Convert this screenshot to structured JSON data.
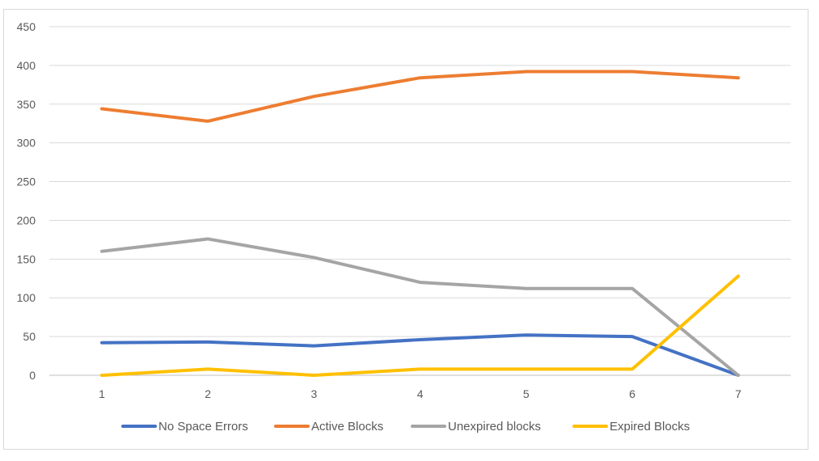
{
  "chart_data": {
    "type": "line",
    "title": "",
    "xlabel": "",
    "ylabel": "",
    "categories": [
      "1",
      "2",
      "3",
      "4",
      "5",
      "6",
      "7"
    ],
    "ylim": [
      0,
      450
    ],
    "yticks": [
      0,
      50,
      100,
      150,
      200,
      250,
      300,
      350,
      400,
      450
    ],
    "grid": true,
    "legend_position": "bottom",
    "series": [
      {
        "name": "No Space Errors",
        "color": "#4472c4",
        "values": [
          42,
          43,
          38,
          46,
          52,
          50,
          0
        ]
      },
      {
        "name": "Active Blocks",
        "color": "#ed7d31",
        "values": [
          344,
          328,
          360,
          384,
          392,
          392,
          384
        ]
      },
      {
        "name": "Unexpired blocks",
        "color": "#a5a5a5",
        "values": [
          160,
          176,
          152,
          120,
          112,
          112,
          0
        ]
      },
      {
        "name": "Expired Blocks",
        "color": "#ffc000",
        "values": [
          0,
          8,
          0,
          8,
          8,
          8,
          128
        ]
      }
    ]
  }
}
